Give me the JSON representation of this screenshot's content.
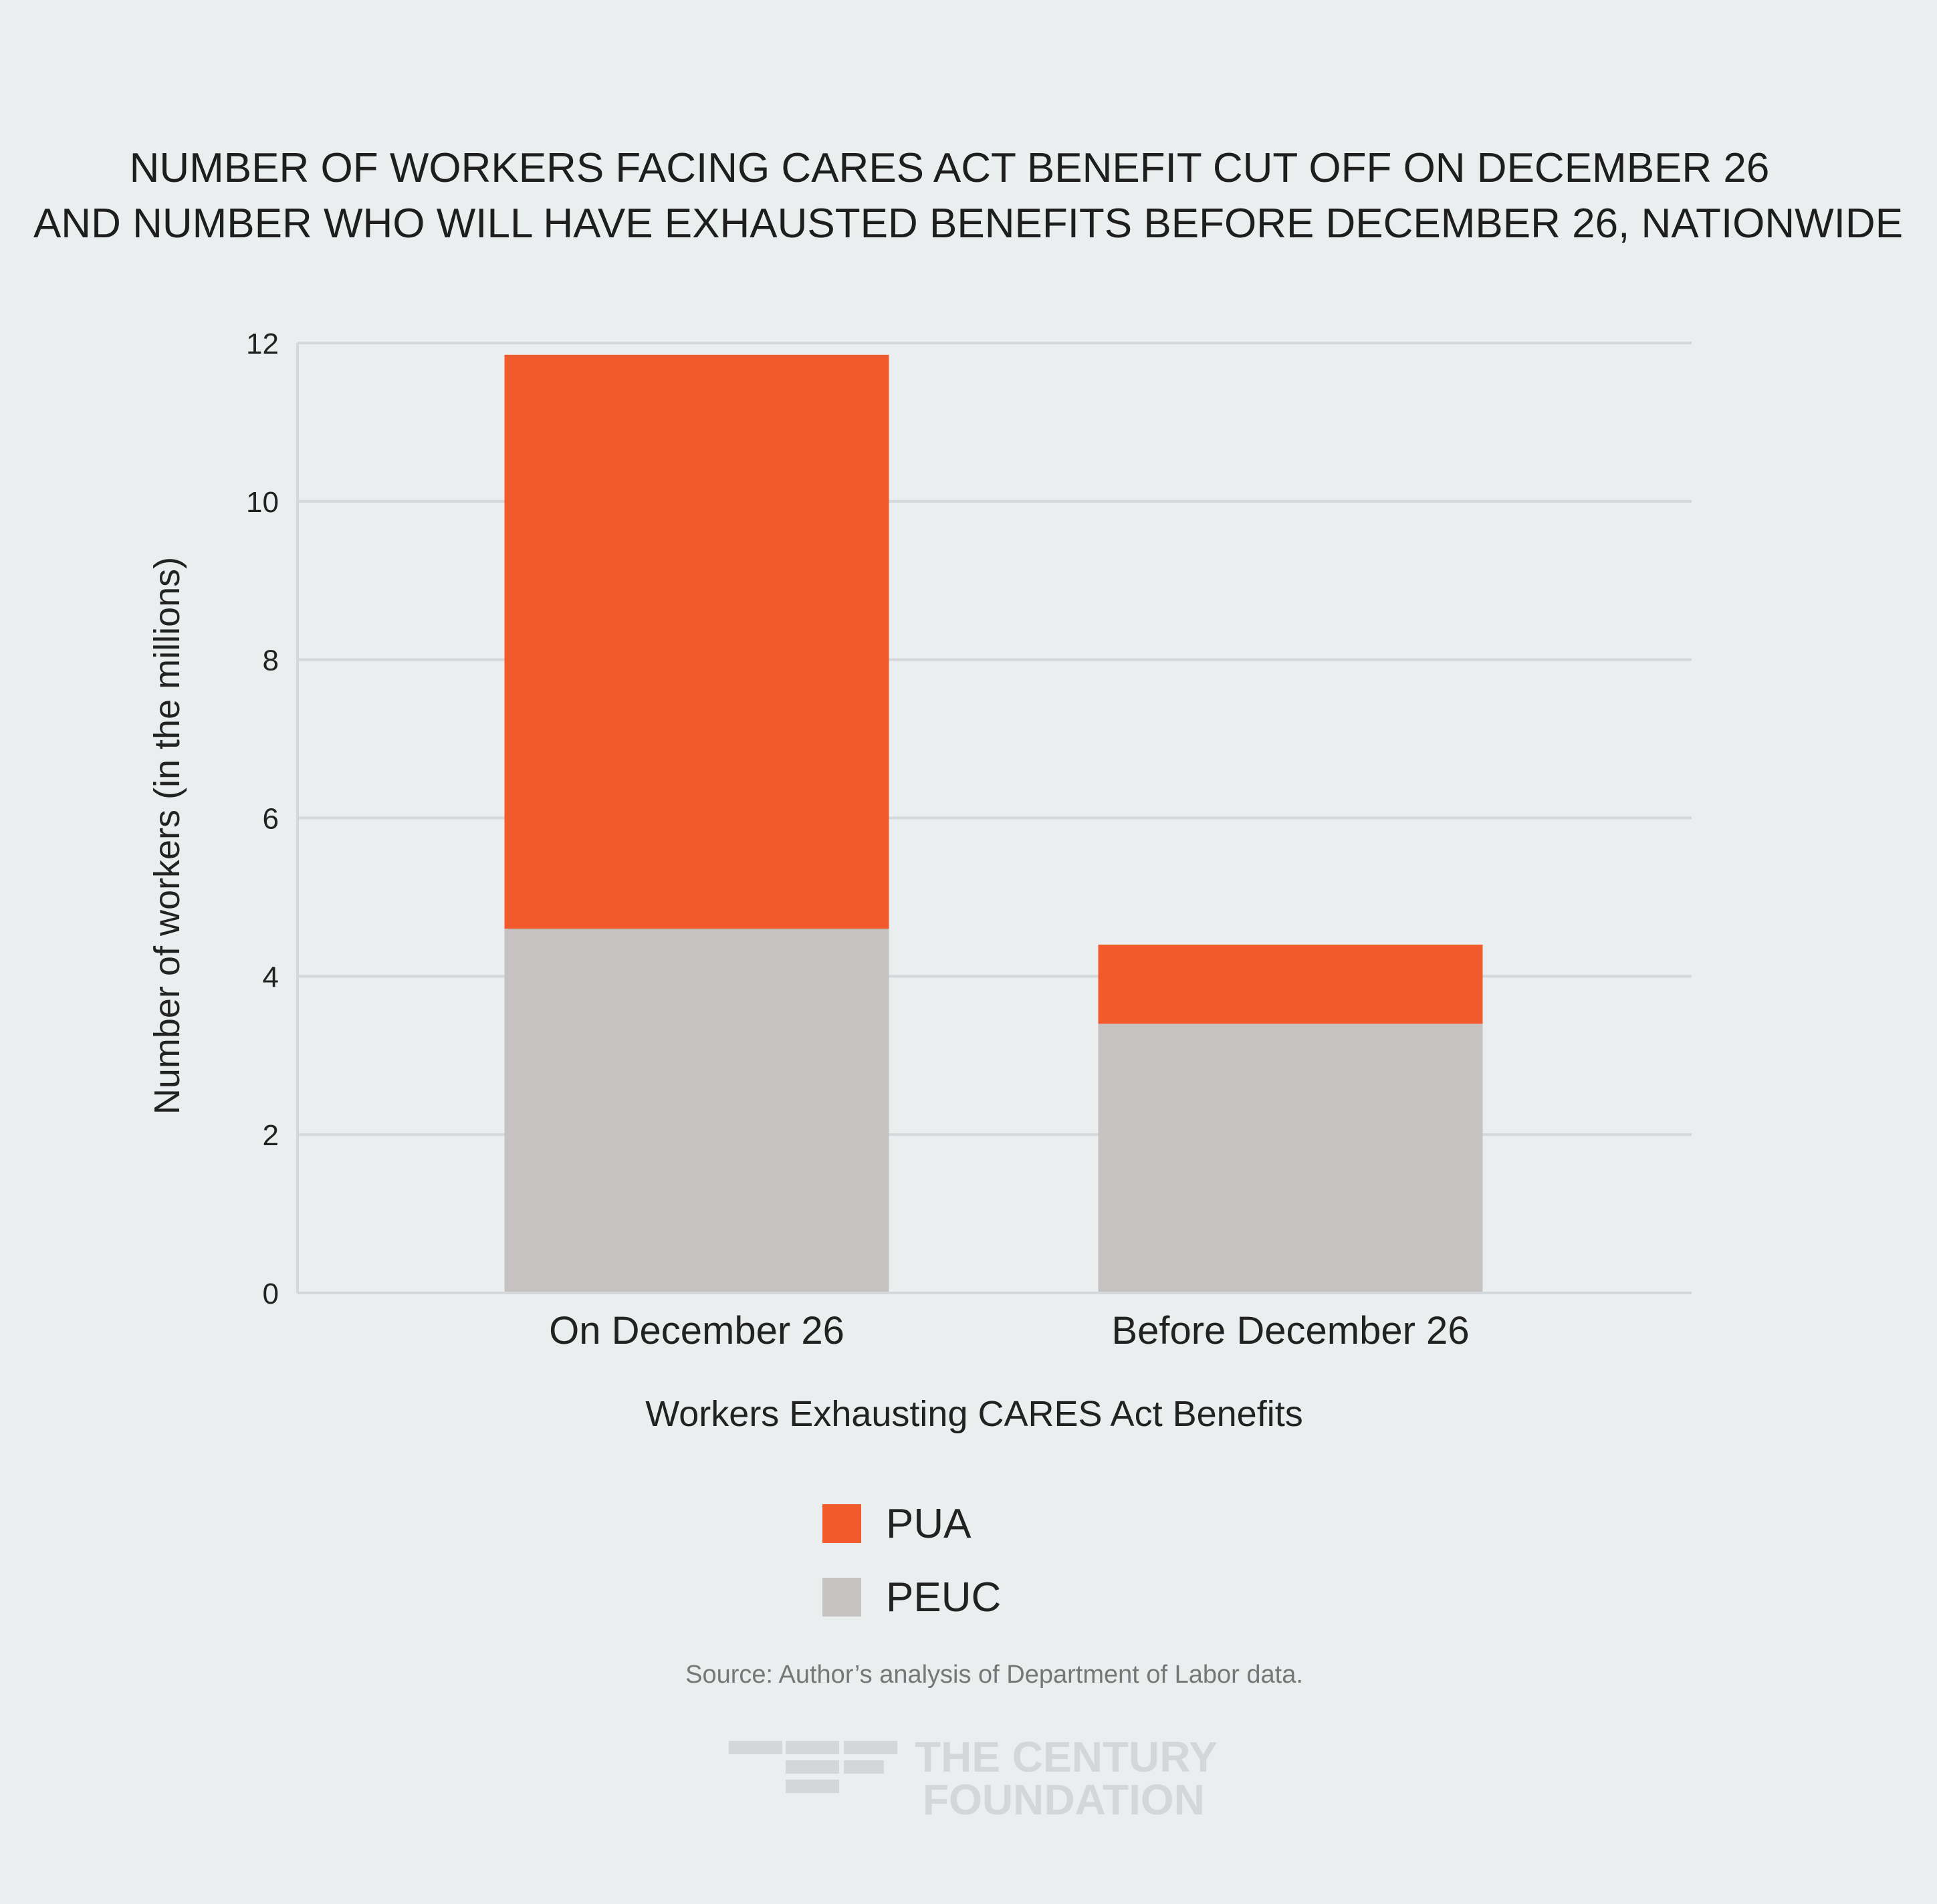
{
  "chart_data": {
    "type": "bar",
    "stacked": true,
    "title": [
      "NUMBER OF WORKERS FACING CARES ACT BENEFIT CUT OFF ON DECEMBER 26",
      "AND NUMBER WHO WILL HAVE EXHAUSTED BENEFITS BEFORE DECEMBER 26, NATIONWIDE"
    ],
    "categories": [
      "On December 26",
      "Before December 26"
    ],
    "series": [
      {
        "name": "PEUC",
        "values": [
          4.6,
          3.4
        ],
        "color": "#c6c2c1"
      },
      {
        "name": "PUA",
        "values": [
          7.25,
          1.0
        ],
        "color": "#f15a2d"
      }
    ],
    "xlabel": "Workers Exhausting CARES Act Benefits",
    "ylabel": "Number of workers (in the millions)",
    "ylim": [
      0,
      12
    ],
    "yticks": [
      0,
      2,
      4,
      6,
      8,
      10,
      12
    ],
    "grid": true,
    "legend": {
      "placement": "bottom-center",
      "entries": [
        {
          "name": "PUA",
          "color": "#f15a2d"
        },
        {
          "name": "PEUC",
          "color": "#c6c2c1"
        }
      ]
    },
    "source": "Source:  Author’s analysis of Department of Labor data.",
    "logo": [
      "THE CENTURY",
      "FOUNDATION"
    ]
  }
}
